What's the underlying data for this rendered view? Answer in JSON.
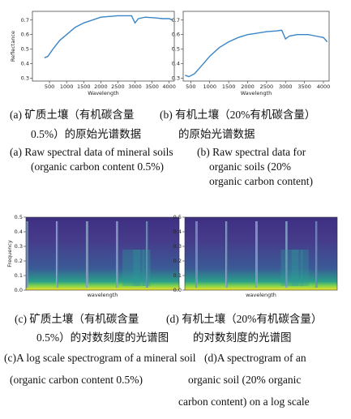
{
  "line_panels": [
    {
      "type": "line",
      "x_label": "Wavelength",
      "y_label": "Reflectance",
      "color": "#3a86c8",
      "x": [
        350,
        450,
        600,
        800,
        1000,
        1250,
        1500,
        1750,
        2000,
        2250,
        2500,
        2750,
        2900,
        3000,
        3100,
        3300,
        3600,
        3800,
        4000,
        4100
      ],
      "values": [
        0.44,
        0.45,
        0.5,
        0.56,
        0.6,
        0.65,
        0.68,
        0.7,
        0.72,
        0.725,
        0.73,
        0.73,
        0.73,
        0.68,
        0.71,
        0.72,
        0.715,
        0.71,
        0.71,
        0.7
      ],
      "xlim": [
        0,
        4150
      ],
      "ylim": [
        0.28,
        0.76
      ],
      "xticks": [
        500,
        1000,
        1500,
        2000,
        2500,
        3000,
        3500,
        4000
      ],
      "yticks": [
        0.3,
        0.4,
        0.5,
        0.6,
        0.7
      ]
    },
    {
      "type": "line",
      "x_label": "Wavelength",
      "color": "#3a86c8",
      "x": [
        350,
        450,
        600,
        800,
        1000,
        1250,
        1500,
        1750,
        2000,
        2250,
        2500,
        2750,
        2900,
        3000,
        3100,
        3300,
        3600,
        3800,
        4000,
        4100
      ],
      "values": [
        0.32,
        0.31,
        0.33,
        0.39,
        0.45,
        0.51,
        0.55,
        0.58,
        0.6,
        0.61,
        0.62,
        0.625,
        0.63,
        0.57,
        0.59,
        0.6,
        0.6,
        0.59,
        0.58,
        0.55
      ],
      "xlim": [
        300,
        4150
      ],
      "ylim": [
        0.28,
        0.76
      ],
      "xticks": [
        500,
        1000,
        1500,
        2000,
        2500,
        3000,
        3500,
        4000
      ],
      "yticks": [
        0.3,
        0.4,
        0.5,
        0.6,
        0.7
      ]
    }
  ],
  "spectrograms": [
    {
      "x_label": "wavelength",
      "y_label": "Frequency",
      "ylim": [
        0,
        0.5
      ],
      "yticks": [
        {
          "value": 0,
          "label": "0.0"
        },
        0.1,
        0.2,
        0.3,
        0.4,
        0.5
      ]
    },
    {
      "x_label": "wavelength",
      "ylim": [
        0,
        0.5
      ],
      "yticks": [
        {
          "value": 0,
          "label": "0.0"
        },
        0.1,
        0.2,
        0.3,
        0.4,
        0.5
      ]
    }
  ],
  "captions": [
    "(a) 矿质土壤（有机碳含量",
    "(b) 有机土壤（20%有机碳含量）",
    "0.5%）的原始光谱数据",
    "的原始光谱数据",
    "(a) Raw spectral data of mineral soils",
    "(b) Raw spectral data for",
    "(organic carbon content 0.5%)",
    "organic soils (20%",
    "organic carbon content)",
    "(c) 矿质土壤（有机碳含量",
    "(d) 有机土壤（20%有机碳含量）",
    "0.5%）的对数刻度的光谱图",
    "的对数刻度的光谱图",
    "(c)A log scale spectrogram of a mineral soil",
    "(d)A spectrogram of an",
    "(organic carbon content 0.5%)",
    "organic soil (20% organic",
    "carbon content) on a log scale"
  ]
}
